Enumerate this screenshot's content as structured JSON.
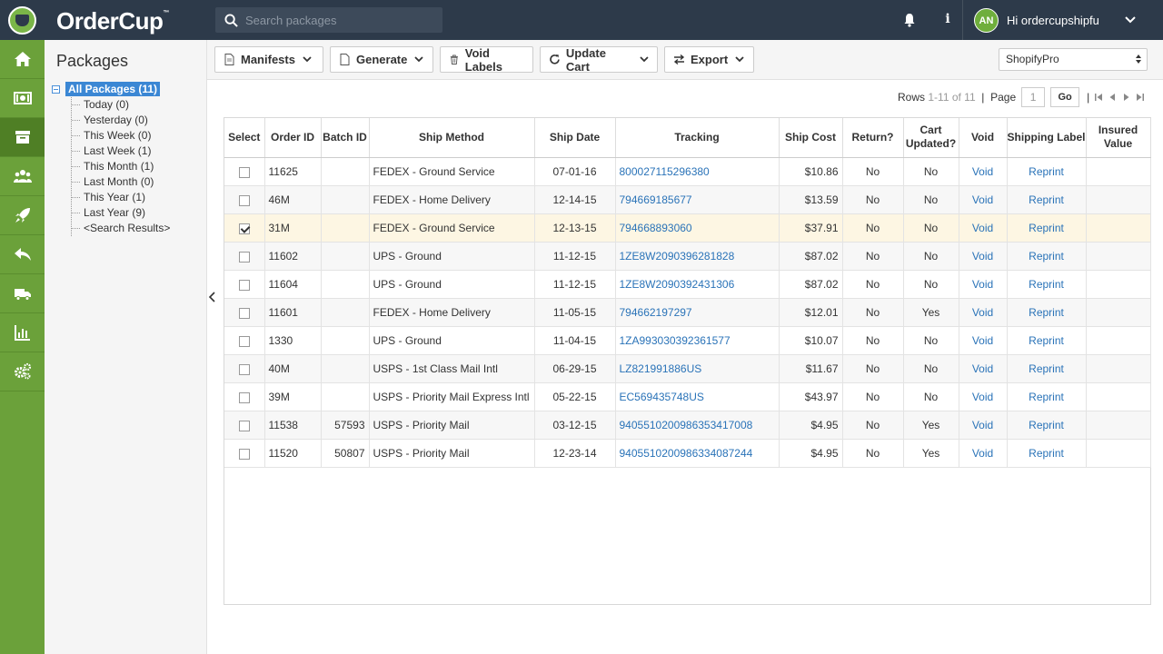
{
  "brand": {
    "name_part1": "Order",
    "name_part2": "Cup",
    "tm": "™"
  },
  "search": {
    "placeholder": "Search packages"
  },
  "user": {
    "initials": "AN",
    "greeting": "Hi ordercupshipfu"
  },
  "nav": [
    {
      "name": "home-icon"
    },
    {
      "name": "money-icon"
    },
    {
      "name": "box-icon"
    },
    {
      "name": "users-icon"
    },
    {
      "name": "rocket-icon"
    },
    {
      "name": "return-icon"
    },
    {
      "name": "truck-icon"
    },
    {
      "name": "chart-icon"
    },
    {
      "name": "gears-icon"
    }
  ],
  "tree": {
    "title": "Packages",
    "root": "All Packages (11)",
    "children": [
      "Today (0)",
      "Yesterday (0)",
      "This Week (0)",
      "Last Week (1)",
      "This Month (1)",
      "Last Month (0)",
      "This Year (1)",
      "Last Year (9)",
      "<Search Results>"
    ]
  },
  "toolbar": {
    "manifests": "Manifests",
    "generate": "Generate",
    "void_labels": "Void Labels",
    "update_cart": "Update Cart",
    "export": "Export",
    "store": "ShopifyPro"
  },
  "pager": {
    "rows_label": "Rows",
    "rows_range": "1-11 of 11",
    "sep": "|",
    "page_label": "Page",
    "page_value": "1",
    "go": "Go"
  },
  "table": {
    "headers": [
      "Select",
      "Order ID",
      "Batch ID",
      "Ship Method",
      "Ship Date",
      "Tracking",
      "Ship Cost",
      "Return?",
      "Cart Updated?",
      "Void",
      "Shipping Label",
      "Insured Value"
    ],
    "rows": [
      {
        "checked": false,
        "order": "11625",
        "batch": "",
        "method": "FEDEX - Ground Service",
        "date": "07-01-16",
        "tracking": "800027115296380",
        "cost": "$10.86",
        "ret": "No",
        "cart": "No",
        "void": "Void",
        "label": "Reprint",
        "insured": ""
      },
      {
        "checked": false,
        "order": "46M",
        "batch": "",
        "method": "FEDEX - Home Delivery",
        "date": "12-14-15",
        "tracking": "794669185677",
        "cost": "$13.59",
        "ret": "No",
        "cart": "No",
        "void": "Void",
        "label": "Reprint",
        "insured": ""
      },
      {
        "checked": true,
        "order": "31M",
        "batch": "",
        "method": "FEDEX - Ground Service",
        "date": "12-13-15",
        "tracking": "794668893060",
        "cost": "$37.91",
        "ret": "No",
        "cart": "No",
        "void": "Void",
        "label": "Reprint",
        "insured": ""
      },
      {
        "checked": false,
        "order": "11602",
        "batch": "",
        "method": "UPS - Ground",
        "date": "11-12-15",
        "tracking": "1ZE8W2090396281828",
        "cost": "$87.02",
        "ret": "No",
        "cart": "No",
        "void": "Void",
        "label": "Reprint",
        "insured": ""
      },
      {
        "checked": false,
        "order": "11604",
        "batch": "",
        "method": "UPS - Ground",
        "date": "11-12-15",
        "tracking": "1ZE8W2090392431306",
        "cost": "$87.02",
        "ret": "No",
        "cart": "No",
        "void": "Void",
        "label": "Reprint",
        "insured": ""
      },
      {
        "checked": false,
        "order": "11601",
        "batch": "",
        "method": "FEDEX - Home Delivery",
        "date": "11-05-15",
        "tracking": "794662197297",
        "cost": "$12.01",
        "ret": "No",
        "cart": "Yes",
        "void": "Void",
        "label": "Reprint",
        "insured": ""
      },
      {
        "checked": false,
        "order": "1330",
        "batch": "",
        "method": "UPS - Ground",
        "date": "11-04-15",
        "tracking": "1ZA993030392361577",
        "cost": "$10.07",
        "ret": "No",
        "cart": "No",
        "void": "Void",
        "label": "Reprint",
        "insured": ""
      },
      {
        "checked": false,
        "order": "40M",
        "batch": "",
        "method": "USPS - 1st Class Mail Intl",
        "date": "06-29-15",
        "tracking": "LZ821991886US",
        "cost": "$11.67",
        "ret": "No",
        "cart": "No",
        "void": "Void",
        "label": "Reprint",
        "insured": ""
      },
      {
        "checked": false,
        "order": "39M",
        "batch": "",
        "method": "USPS - Priority Mail Express Intl",
        "date": "05-22-15",
        "tracking": "EC569435748US",
        "cost": "$43.97",
        "ret": "No",
        "cart": "No",
        "void": "Void",
        "label": "Reprint",
        "insured": ""
      },
      {
        "checked": false,
        "order": "11538",
        "batch": "57593",
        "method": "USPS - Priority Mail",
        "date": "03-12-15",
        "tracking": "9405510200986353417008",
        "cost": "$4.95",
        "ret": "No",
        "cart": "Yes",
        "void": "Void",
        "label": "Reprint",
        "insured": ""
      },
      {
        "checked": false,
        "order": "11520",
        "batch": "50807",
        "method": "USPS - Priority Mail",
        "date": "12-23-14",
        "tracking": "9405510200986334087244",
        "cost": "$4.95",
        "ret": "No",
        "cart": "Yes",
        "void": "Void",
        "label": "Reprint",
        "insured": ""
      }
    ]
  },
  "colors": {
    "topbar": "#2d3a4a",
    "nav_green": "#6ba13a",
    "link_blue": "#2a73b8",
    "selected_row": "#fdf6e3"
  }
}
